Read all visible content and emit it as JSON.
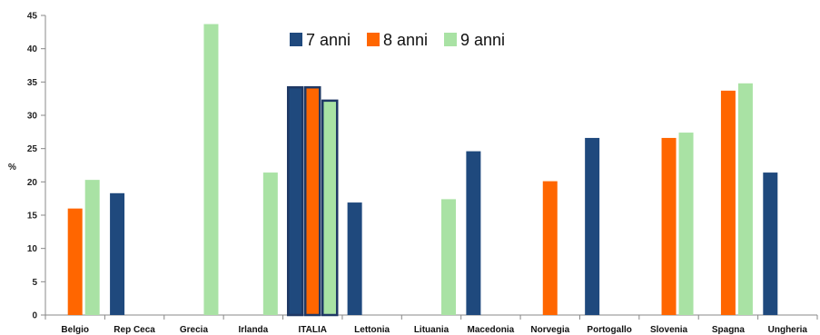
{
  "chart_data": {
    "type": "bar",
    "ylabel": "%",
    "ylim": [
      0,
      45
    ],
    "yticks": [
      0,
      5,
      10,
      15,
      20,
      25,
      30,
      35,
      40,
      45
    ],
    "grid": false,
    "legend_position": "top-center",
    "categories": [
      "Belgio",
      "Rep Ceca",
      "Grecia",
      "Irlanda",
      "ITALIA",
      "Lettonia",
      "Lituania",
      "Macedonia",
      "Norvegia",
      "Portogallo",
      "Slovenia",
      "Spagna",
      "Ungheria"
    ],
    "highlight_category": "ITALIA",
    "series": [
      {
        "name": "7 anni",
        "color": "#1f497d",
        "values": [
          null,
          18.3,
          null,
          null,
          34.2,
          16.9,
          null,
          24.6,
          null,
          26.6,
          null,
          null,
          21.4
        ]
      },
      {
        "name": "8 anni",
        "color": "#ff6600",
        "values": [
          16.0,
          null,
          null,
          null,
          34.2,
          null,
          null,
          null,
          20.1,
          null,
          26.6,
          33.7,
          null
        ]
      },
      {
        "name": "9 anni",
        "color": "#a9e2a4",
        "values": [
          20.3,
          null,
          43.7,
          21.4,
          32.2,
          null,
          17.4,
          null,
          null,
          null,
          27.4,
          34.8,
          null
        ]
      }
    ]
  }
}
